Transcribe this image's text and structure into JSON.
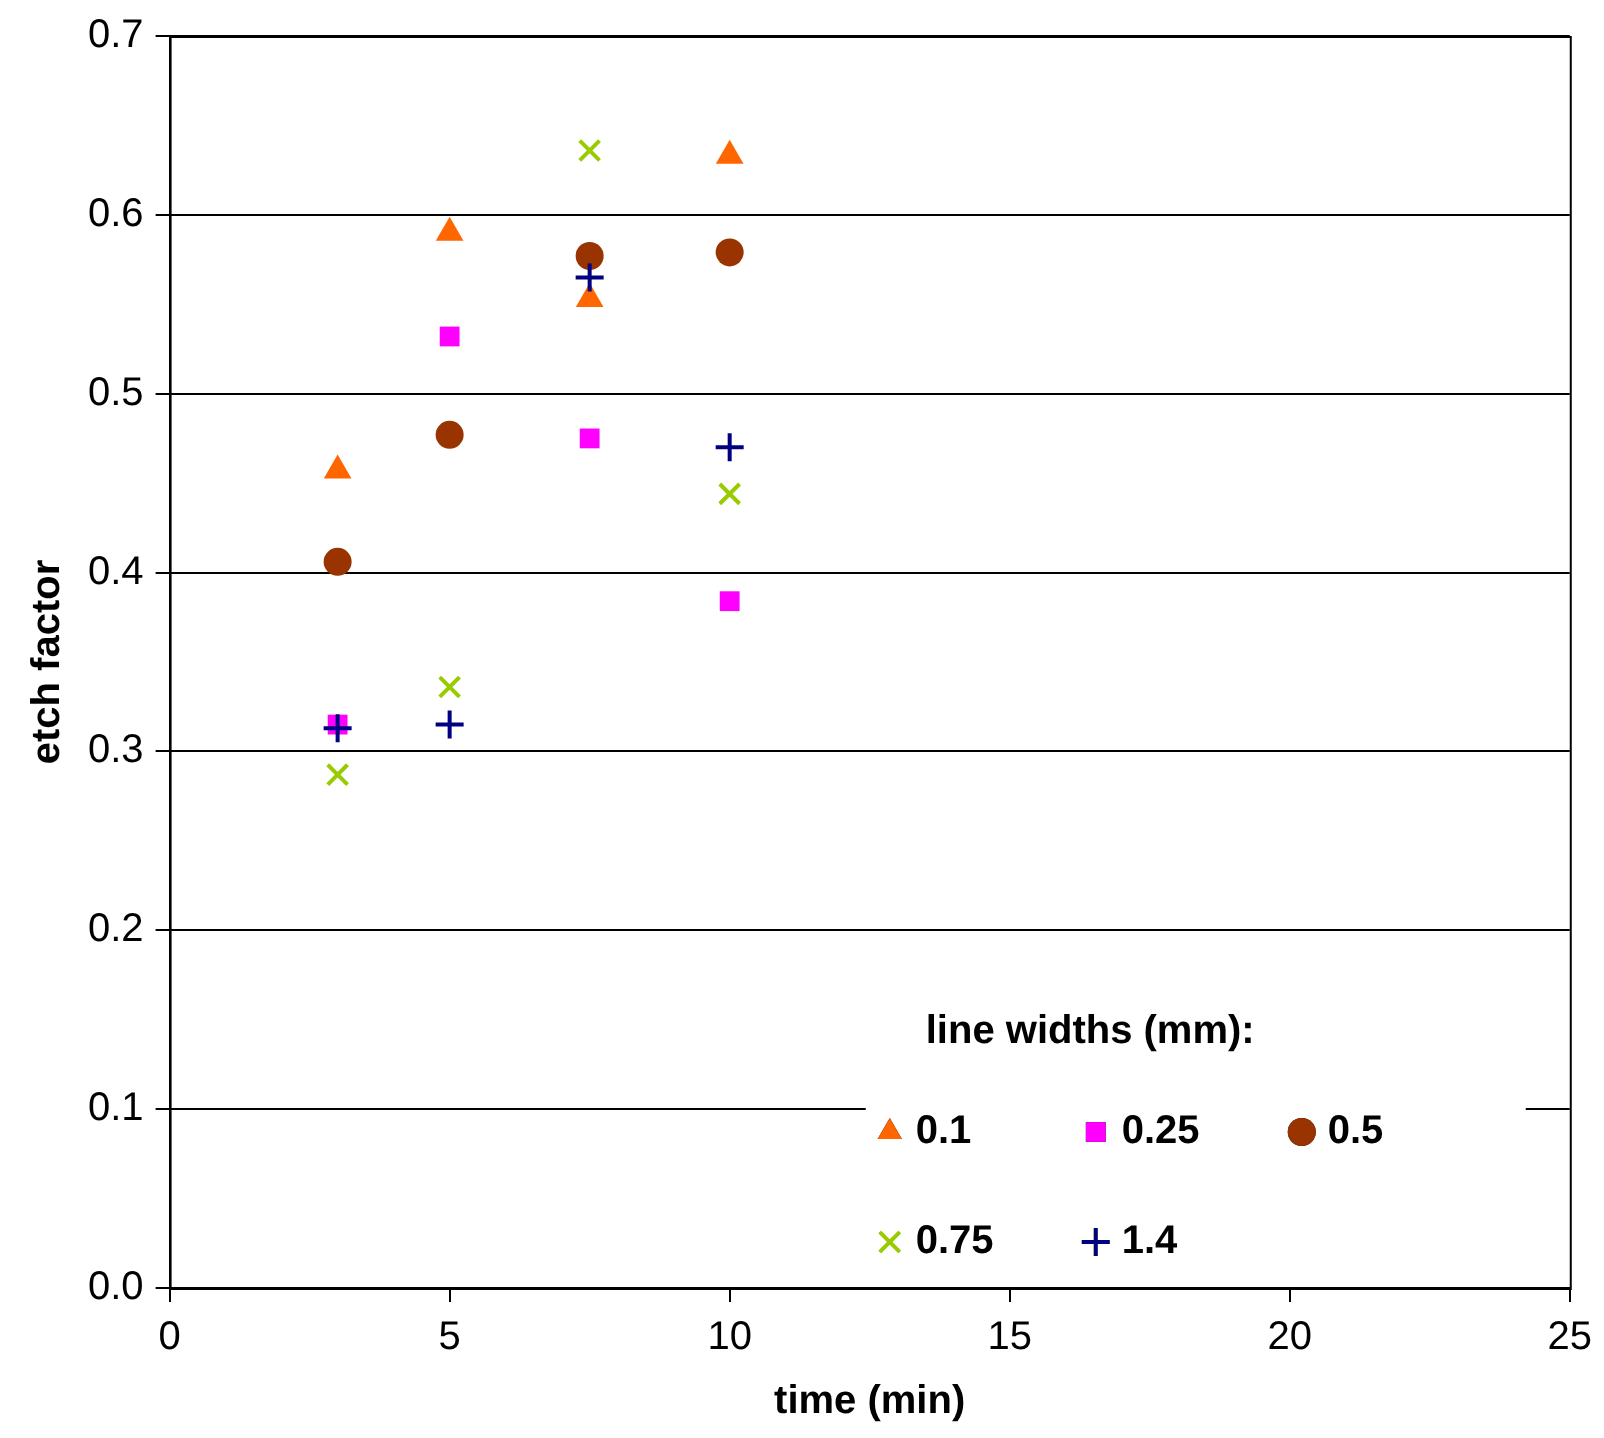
{
  "chart_data": {
    "type": "scatter",
    "xlabel": "time (min)",
    "ylabel": "etch factor",
    "legend_title": "line widths (mm):",
    "xlim": [
      0,
      25
    ],
    "xticks": [
      0,
      5,
      10,
      15,
      20,
      25
    ],
    "ylim": [
      0,
      0.7
    ],
    "yticks": [
      {
        "value": 0,
        "label": "0.0"
      },
      0.1,
      0.2,
      0.3,
      0.4,
      0.5,
      0.6,
      0.7
    ],
    "grid": "y",
    "legend": "bottom right",
    "series": [
      {
        "name": "0.1",
        "color": "#ff6600",
        "marker": "triangle",
        "x": [
          3,
          5,
          7.5,
          10
        ],
        "values": [
          0.457,
          0.59,
          0.553,
          0.633
        ]
      },
      {
        "name": "0.25",
        "color": "#ff00ff",
        "marker": "square",
        "x": [
          3,
          5,
          7.5,
          10
        ],
        "values": [
          0.315,
          0.532,
          0.475,
          0.384
        ]
      },
      {
        "name": "0.5",
        "color": "#993300",
        "marker": "circle",
        "x": [
          3,
          5,
          7.5,
          10
        ],
        "values": [
          0.406,
          0.477,
          0.577,
          0.579
        ]
      },
      {
        "name": "0.75",
        "color": "#99cc00",
        "marker": "cross",
        "x": [
          3,
          5,
          7.5,
          10
        ],
        "values": [
          0.287,
          0.336,
          0.636,
          0.444
        ]
      },
      {
        "name": "1.4",
        "color": "#000080",
        "marker": "plus",
        "x": [
          3,
          5,
          7.5,
          10
        ],
        "values": [
          0.313,
          0.315,
          0.565,
          0.47
        ]
      }
    ]
  }
}
